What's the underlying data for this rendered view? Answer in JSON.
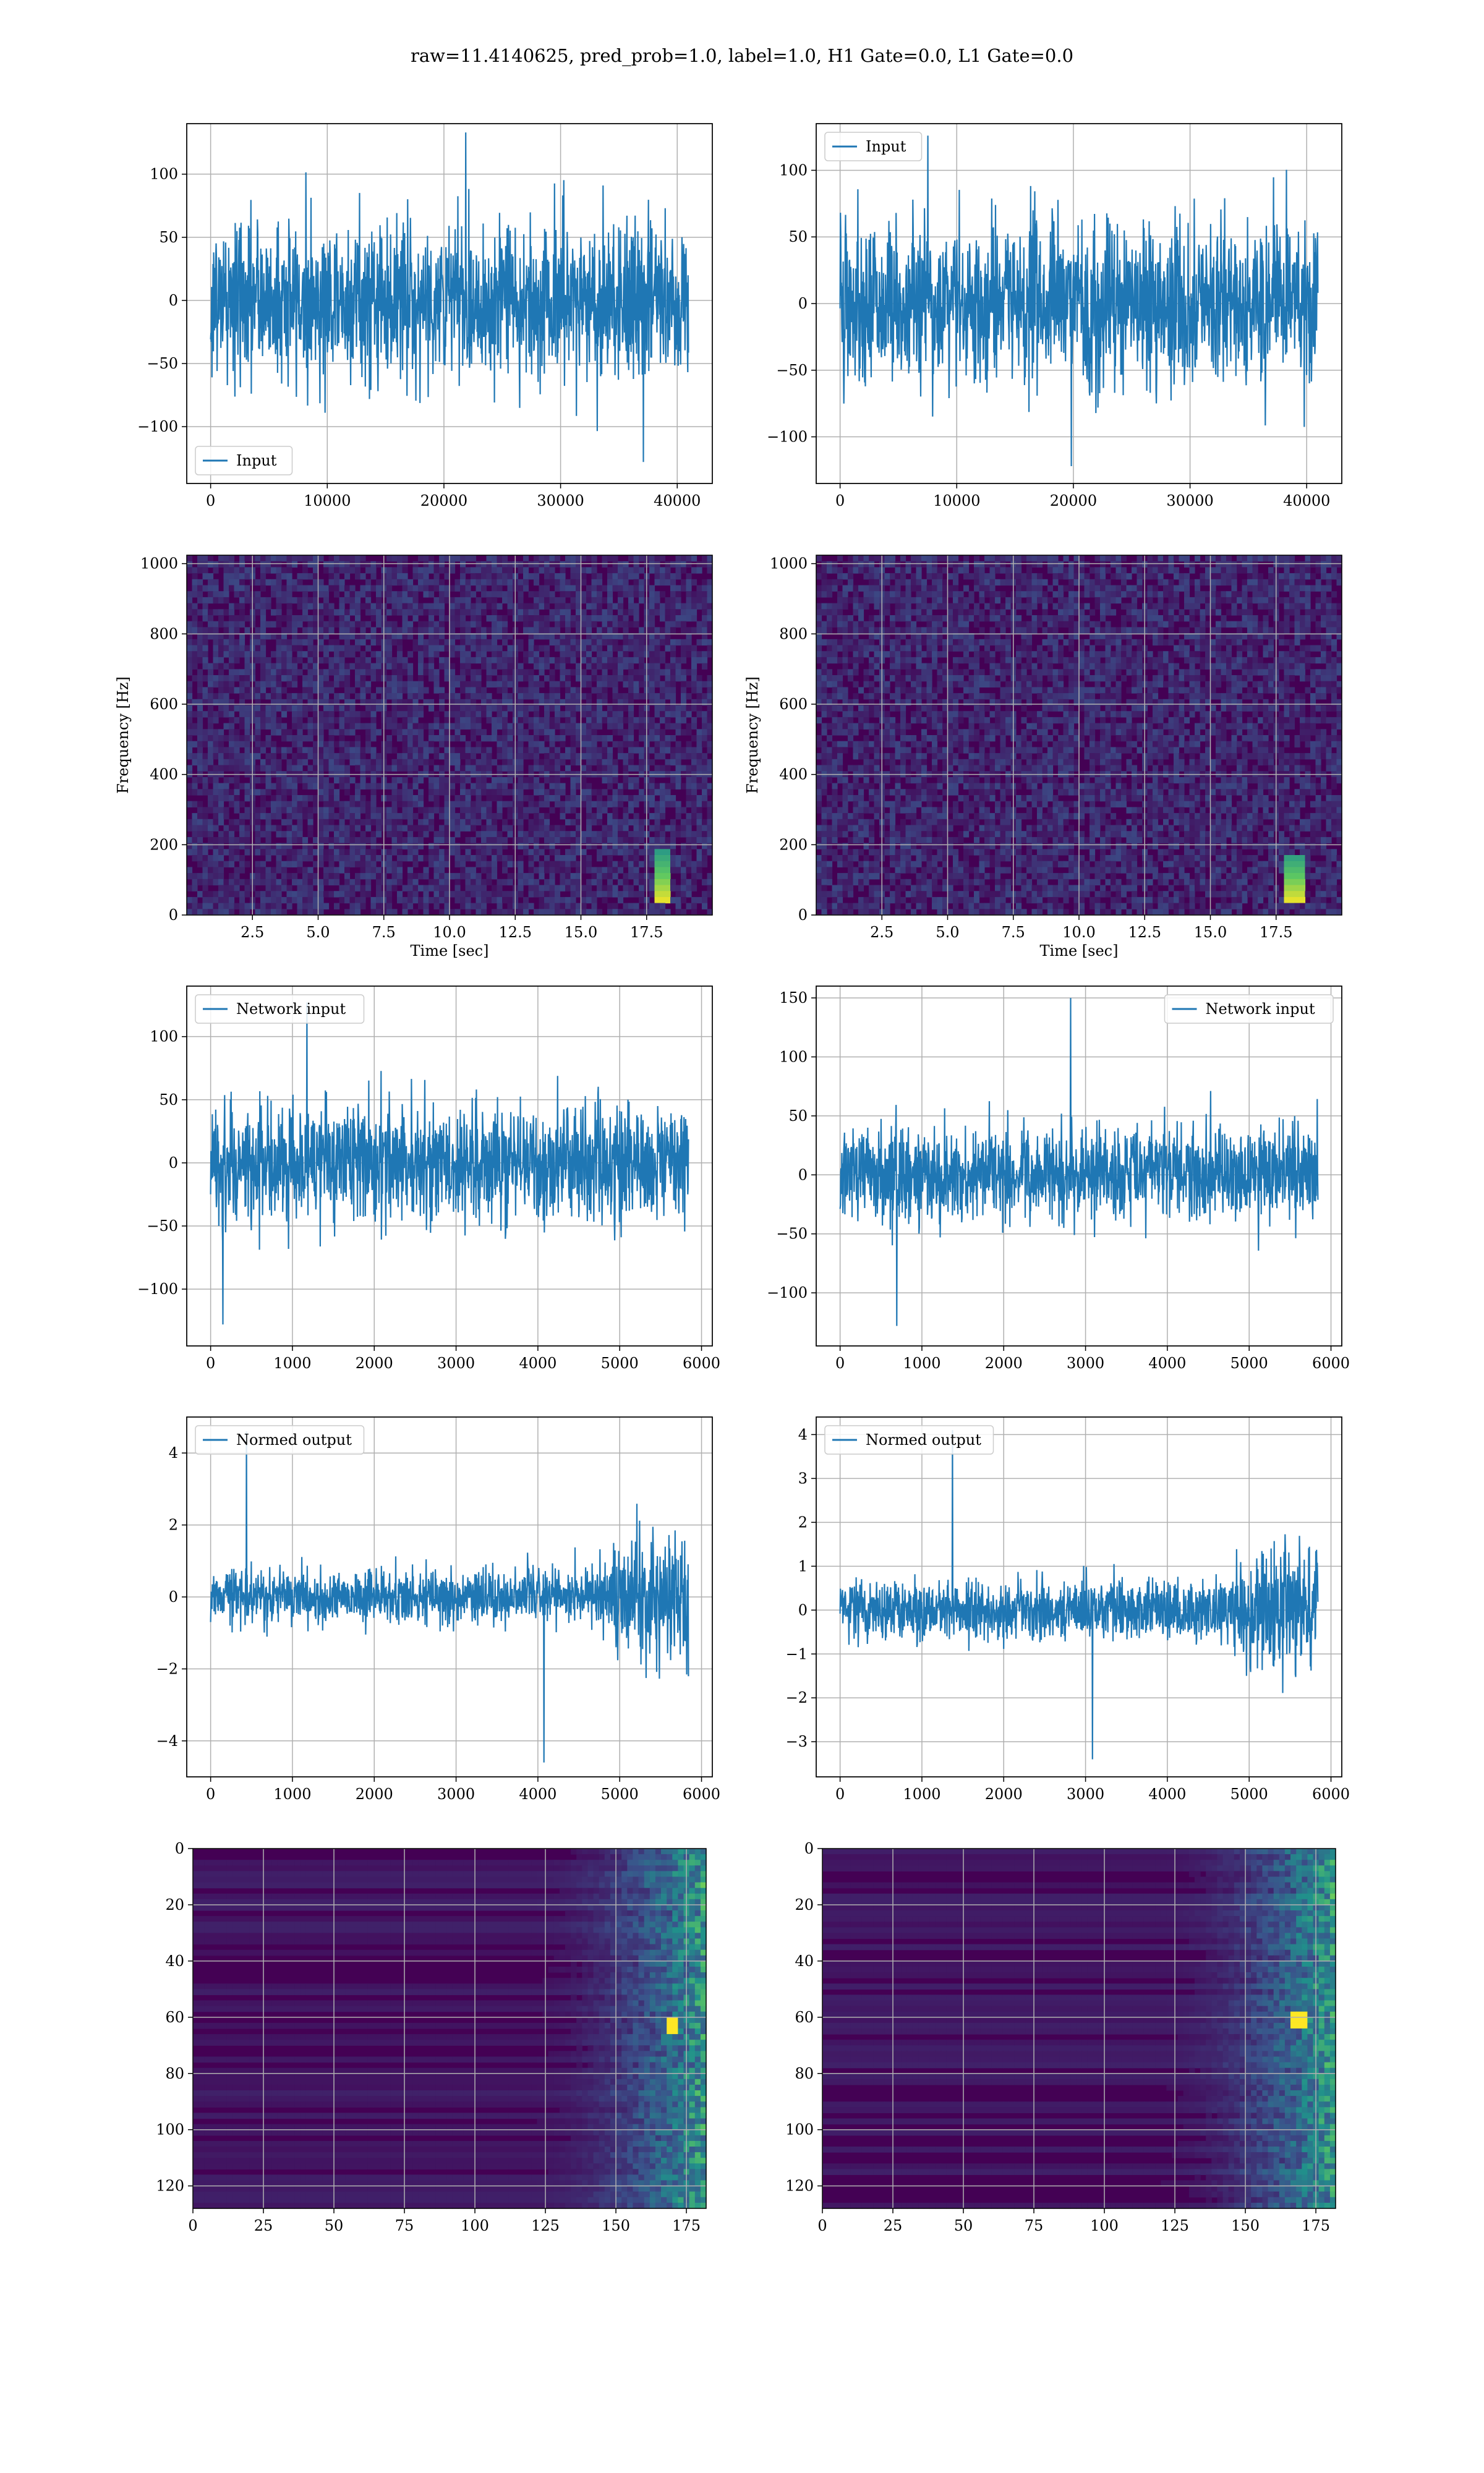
{
  "figure": {
    "suptitle": "raw=11.4140625, pred_prob=1.0, label=1.0, H1 Gate=0.0, L1 Gate=0.0"
  },
  "colors": {
    "line": "#1f77b4",
    "grid": "#b0b0b0",
    "viridis_low": "#440154",
    "viridis_mid": "#21918c",
    "viridis_high": "#fde725"
  },
  "chart_data": [
    {
      "id": "p0",
      "type": "line",
      "series": [
        {
          "name": "Input",
          "envelope": {
            "x_start": 0,
            "x_end": 40960,
            "typical_amplitude": 75,
            "max": 133,
            "min": -128
          }
        }
      ],
      "xlim": [
        -2048,
        43008
      ],
      "ylim": [
        -145,
        140
      ],
      "xticks": [
        0,
        10000,
        20000,
        30000,
        40000
      ],
      "xtick_labels": [
        "0",
        "10000",
        "20000",
        "30000",
        "40000"
      ],
      "yticks": [
        -100,
        -50,
        0,
        50,
        100
      ],
      "ytick_labels": [
        "−100",
        "−50",
        "0",
        "50",
        "100"
      ],
      "legend": "lower-left",
      "grid": true,
      "xlabel": "",
      "ylabel": ""
    },
    {
      "id": "p1",
      "type": "line",
      "series": [
        {
          "name": "Input",
          "envelope": {
            "x_start": 0,
            "x_end": 40960,
            "typical_amplitude": 72,
            "max": 126,
            "min": -122
          }
        }
      ],
      "xlim": [
        -2048,
        43008
      ],
      "ylim": [
        -135,
        135
      ],
      "xticks": [
        0,
        10000,
        20000,
        30000,
        40000
      ],
      "xtick_labels": [
        "0",
        "10000",
        "20000",
        "30000",
        "40000"
      ],
      "yticks": [
        -100,
        -50,
        0,
        50,
        100
      ],
      "ytick_labels": [
        "−100",
        "−50",
        "0",
        "50",
        "100"
      ],
      "legend": "upper-left",
      "grid": true,
      "xlabel": "",
      "ylabel": ""
    },
    {
      "id": "p2",
      "type": "heatmap",
      "xlim": [
        0,
        20
      ],
      "ylim": [
        0,
        1024
      ],
      "xticks": [
        2.5,
        5,
        7.5,
        10,
        12.5,
        15,
        17.5
      ],
      "xtick_labels": [
        "2.5",
        "5.0",
        "7.5",
        "10.0",
        "12.5",
        "15.0",
        "17.5"
      ],
      "yticks": [
        0,
        200,
        400,
        600,
        800,
        1000
      ],
      "ytick_labels": [
        "0",
        "200",
        "400",
        "600",
        "800",
        "1000"
      ],
      "xlabel": "Time [sec]",
      "ylabel": "Frequency [Hz]",
      "grid": true,
      "chirp": {
        "t": 18.1,
        "f_low": 30,
        "f_high": 180
      }
    },
    {
      "id": "p3",
      "type": "heatmap",
      "xlim": [
        0,
        20
      ],
      "ylim": [
        0,
        1024
      ],
      "xticks": [
        2.5,
        5,
        7.5,
        10,
        12.5,
        15,
        17.5
      ],
      "xtick_labels": [
        "2.5",
        "5.0",
        "7.5",
        "10.0",
        "12.5",
        "15.0",
        "17.5"
      ],
      "yticks": [
        0,
        200,
        400,
        600,
        800,
        1000
      ],
      "ytick_labels": [
        "0",
        "200",
        "400",
        "600",
        "800",
        "1000"
      ],
      "xlabel": "Time [sec]",
      "ylabel": "Frequency [Hz]",
      "grid": true,
      "chirp": {
        "t": 18.2,
        "f_low": 30,
        "f_high": 170
      }
    },
    {
      "id": "p4",
      "type": "line",
      "series": [
        {
          "name": "Network input",
          "envelope": {
            "x_start": 0,
            "x_end": 5840,
            "typical_amplitude": 55,
            "max": 127,
            "min": -128
          }
        }
      ],
      "xlim": [
        -292,
        6132
      ],
      "ylim": [
        -145,
        140
      ],
      "xticks": [
        0,
        1000,
        2000,
        3000,
        4000,
        5000,
        6000
      ],
      "xtick_labels": [
        "0",
        "1000",
        "2000",
        "3000",
        "4000",
        "5000",
        "6000"
      ],
      "yticks": [
        -100,
        -50,
        0,
        50,
        100
      ],
      "ytick_labels": [
        "−100",
        "−50",
        "0",
        "50",
        "100"
      ],
      "legend": "upper-left",
      "grid": true,
      "xlabel": "",
      "ylabel": ""
    },
    {
      "id": "p5",
      "type": "line",
      "series": [
        {
          "name": "Network input",
          "envelope": {
            "x_start": 0,
            "x_end": 5840,
            "typical_amplitude": 48,
            "max": 150,
            "min": -128
          }
        }
      ],
      "xlim": [
        -292,
        6132
      ],
      "ylim": [
        -145,
        160
      ],
      "xticks": [
        0,
        1000,
        2000,
        3000,
        4000,
        5000,
        6000
      ],
      "xtick_labels": [
        "0",
        "1000",
        "2000",
        "3000",
        "4000",
        "5000",
        "6000"
      ],
      "yticks": [
        -100,
        -50,
        0,
        50,
        100,
        150
      ],
      "ytick_labels": [
        "−100",
        "−50",
        "0",
        "50",
        "100",
        "150"
      ],
      "legend": "upper-right",
      "grid": true,
      "xlabel": "",
      "ylabel": ""
    },
    {
      "id": "p6",
      "type": "line",
      "series": [
        {
          "name": "Normed output",
          "envelope": {
            "x_start": 0,
            "x_end": 5840,
            "typical_amplitude": 0.9,
            "burst_start": 4700,
            "burst_amplitude": 2.2,
            "max": 4.6,
            "min": -4.6
          }
        }
      ],
      "xlim": [
        -292,
        6132
      ],
      "ylim": [
        -5.0,
        5.0
      ],
      "xticks": [
        0,
        1000,
        2000,
        3000,
        4000,
        5000,
        6000
      ],
      "xtick_labels": [
        "0",
        "1000",
        "2000",
        "3000",
        "4000",
        "5000",
        "6000"
      ],
      "yticks": [
        -4,
        -2,
        0,
        2,
        4
      ],
      "ytick_labels": [
        "−4",
        "−2",
        "0",
        "2",
        "4"
      ],
      "legend": "upper-left",
      "grid": true,
      "xlabel": "",
      "ylabel": ""
    },
    {
      "id": "p7",
      "type": "line",
      "series": [
        {
          "name": "Normed output",
          "envelope": {
            "x_start": 0,
            "x_end": 5840,
            "typical_amplitude": 0.8,
            "burst_start": 4650,
            "burst_amplitude": 1.8,
            "max": 4.1,
            "min": -3.4
          }
        }
      ],
      "xlim": [
        -292,
        6132
      ],
      "ylim": [
        -3.8,
        4.4
      ],
      "xticks": [
        0,
        1000,
        2000,
        3000,
        4000,
        5000,
        6000
      ],
      "xtick_labels": [
        "0",
        "1000",
        "2000",
        "3000",
        "4000",
        "5000",
        "6000"
      ],
      "yticks": [
        -3,
        -2,
        -1,
        0,
        1,
        2,
        3,
        4
      ],
      "ytick_labels": [
        "−3",
        "−2",
        "−1",
        "0",
        "1",
        "2",
        "3",
        "4"
      ],
      "legend": "upper-left",
      "grid": true,
      "xlabel": "",
      "ylabel": ""
    },
    {
      "id": "p8",
      "type": "heatmap",
      "xlim": [
        0,
        182
      ],
      "ylim": [
        0,
        128
      ],
      "y_inverted": true,
      "xticks": [
        0,
        25,
        50,
        75,
        100,
        125,
        150,
        175
      ],
      "xtick_labels": [
        "0",
        "25",
        "50",
        "75",
        "100",
        "125",
        "150",
        "175"
      ],
      "yticks": [
        0,
        20,
        40,
        60,
        80,
        100,
        120
      ],
      "ytick_labels": [
        "0",
        "20",
        "40",
        "60",
        "80",
        "100",
        "120"
      ],
      "grid": true,
      "xlabel": "",
      "ylabel": "",
      "hotspot": {
        "x": 170,
        "y": 62
      }
    },
    {
      "id": "p9",
      "type": "heatmap",
      "xlim": [
        0,
        182
      ],
      "ylim": [
        0,
        128
      ],
      "y_inverted": true,
      "xticks": [
        0,
        25,
        50,
        75,
        100,
        125,
        150,
        175
      ],
      "xtick_labels": [
        "0",
        "25",
        "50",
        "75",
        "100",
        "125",
        "150",
        "175"
      ],
      "yticks": [
        0,
        20,
        40,
        60,
        80,
        100,
        120
      ],
      "ytick_labels": [
        "0",
        "20",
        "40",
        "60",
        "80",
        "100",
        "120"
      ],
      "grid": true,
      "xlabel": "",
      "ylabel": "",
      "hotspot": {
        "x": 169,
        "y": 60
      }
    }
  ]
}
